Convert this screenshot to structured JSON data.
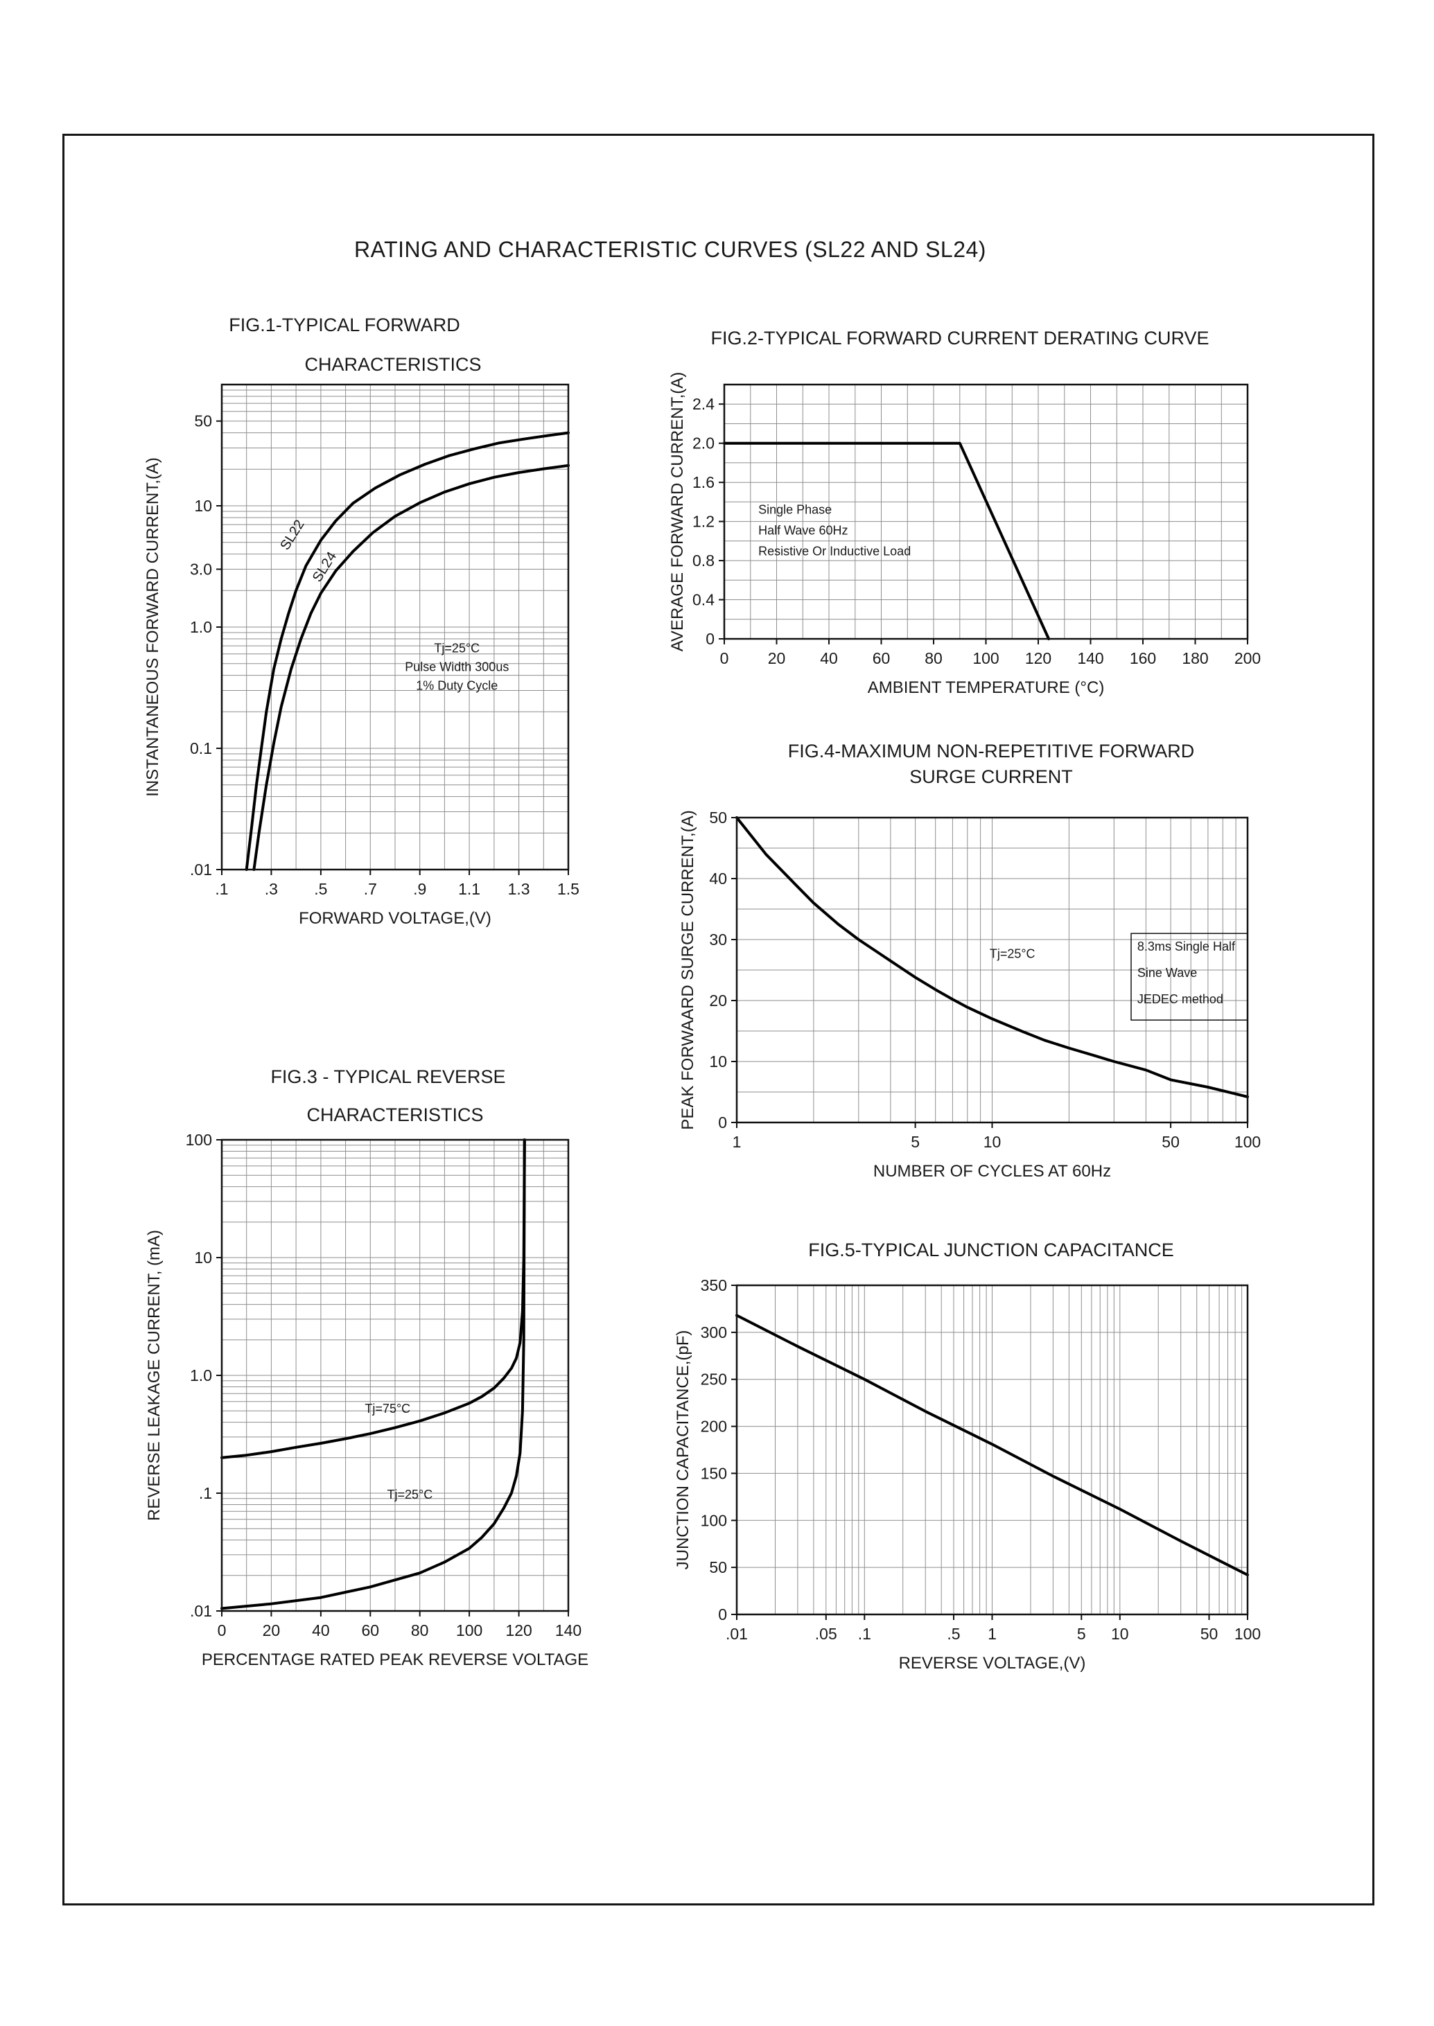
{
  "page": {
    "title": "RATING AND CHARACTERISTIC CURVES (SL22 AND SL24)"
  },
  "chart_data": [
    {
      "id": "fig1",
      "type": "line",
      "title_lines": [
        "FIG.1-TYPICAL FORWARD",
        "CHARACTERISTICS"
      ],
      "x": {
        "label": "FORWARD VOLTAGE,(V)",
        "scale": "linear",
        "min": 0.1,
        "max": 1.5,
        "grid_step": 0.1,
        "ticks": [
          {
            "v": 0.1,
            "t": ".1"
          },
          {
            "v": 0.3,
            "t": ".3"
          },
          {
            "v": 0.5,
            "t": ".5"
          },
          {
            "v": 0.7,
            "t": ".7"
          },
          {
            "v": 0.9,
            "t": ".9"
          },
          {
            "v": 1.1,
            "t": "1.1"
          },
          {
            "v": 1.3,
            "t": "1.3"
          },
          {
            "v": 1.5,
            "t": "1.5"
          }
        ]
      },
      "y": {
        "label": "INSTANTANEOUS FORWARD CURRENT,(A)",
        "scale": "log",
        "min": 0.01,
        "max": 100,
        "ticks": [
          {
            "v": 50,
            "t": "50"
          },
          {
            "v": 10,
            "t": "10"
          },
          {
            "v": 3,
            "t": "3.0"
          },
          {
            "v": 1,
            "t": "1.0"
          },
          {
            "v": 0.1,
            "t": "0.1"
          },
          {
            "v": 0.01,
            "t": ".01"
          }
        ]
      },
      "series": [
        {
          "name": "SL22",
          "points": [
            [
              0.2,
              0.01
            ],
            [
              0.22,
              0.022
            ],
            [
              0.24,
              0.05
            ],
            [
              0.26,
              0.1
            ],
            [
              0.28,
              0.2
            ],
            [
              0.31,
              0.45
            ],
            [
              0.34,
              0.8
            ],
            [
              0.37,
              1.3
            ],
            [
              0.4,
              2.0
            ],
            [
              0.44,
              3.2
            ],
            [
              0.5,
              5.2
            ],
            [
              0.56,
              7.5
            ],
            [
              0.63,
              10.5
            ],
            [
              0.72,
              14
            ],
            [
              0.82,
              18
            ],
            [
              0.92,
              22
            ],
            [
              1.02,
              26
            ],
            [
              1.12,
              29.5
            ],
            [
              1.22,
              33
            ],
            [
              1.32,
              35.5
            ],
            [
              1.42,
              38
            ],
            [
              1.5,
              40
            ]
          ]
        },
        {
          "name": "SL24",
          "points": [
            [
              0.23,
              0.01
            ],
            [
              0.25,
              0.02
            ],
            [
              0.28,
              0.05
            ],
            [
              0.31,
              0.11
            ],
            [
              0.34,
              0.22
            ],
            [
              0.38,
              0.45
            ],
            [
              0.42,
              0.8
            ],
            [
              0.46,
              1.3
            ],
            [
              0.5,
              1.9
            ],
            [
              0.56,
              2.9
            ],
            [
              0.63,
              4.2
            ],
            [
              0.71,
              6.0
            ],
            [
              0.8,
              8.2
            ],
            [
              0.9,
              10.6
            ],
            [
              1.0,
              13
            ],
            [
              1.1,
              15.2
            ],
            [
              1.2,
              17.2
            ],
            [
              1.3,
              18.8
            ],
            [
              1.4,
              20.2
            ],
            [
              1.5,
              21.5
            ]
          ]
        }
      ],
      "annotations": [
        {
          "lines": [
            "SL22"
          ],
          "x": 0.4,
          "y": 5.5,
          "rotate": -58,
          "size": 20
        },
        {
          "lines": [
            "SL24"
          ],
          "x": 0.53,
          "y": 3.0,
          "rotate": -58,
          "size": 20
        },
        {
          "lines": [
            "Tj=25°C",
            "Pulse Width 300us",
            "1% Duty Cycle"
          ],
          "x": 1.05,
          "y": 0.62,
          "align": "center",
          "size": 18,
          "line_h": 27
        }
      ]
    },
    {
      "id": "fig2",
      "type": "line",
      "title_lines": [
        "FIG.2-TYPICAL FORWARD CURRENT DERATING CURVE"
      ],
      "x": {
        "label": "AMBIENT TEMPERATURE (°C)",
        "scale": "linear",
        "min": 0,
        "max": 200,
        "grid_step": 10,
        "ticks": [
          {
            "v": 0,
            "t": "0"
          },
          {
            "v": 20,
            "t": "20"
          },
          {
            "v": 40,
            "t": "40"
          },
          {
            "v": 60,
            "t": "60"
          },
          {
            "v": 80,
            "t": "80"
          },
          {
            "v": 100,
            "t": "100"
          },
          {
            "v": 120,
            "t": "120"
          },
          {
            "v": 140,
            "t": "140"
          },
          {
            "v": 160,
            "t": "160"
          },
          {
            "v": 180,
            "t": "180"
          },
          {
            "v": 200,
            "t": "200"
          }
        ]
      },
      "y": {
        "label": "AVERAGE FORWARD CURRENT,(A)",
        "scale": "linear",
        "min": 0,
        "max": 2.6,
        "grid_step": 0.2,
        "ticks": [
          {
            "v": 2.4,
            "t": "2.4"
          },
          {
            "v": 2.0,
            "t": "2.0"
          },
          {
            "v": 1.6,
            "t": "1.6"
          },
          {
            "v": 1.2,
            "t": "1.2"
          },
          {
            "v": 0.8,
            "t": "0.8"
          },
          {
            "v": 0.4,
            "t": "0.4"
          },
          {
            "v": 0,
            "t": "0"
          }
        ]
      },
      "series": [
        {
          "name": "derating",
          "points": [
            [
              0,
              2.0
            ],
            [
              90,
              2.0
            ],
            [
              124,
              0
            ]
          ]
        }
      ],
      "annotations": [
        {
          "lines": [
            "Single Phase",
            "Half Wave 60Hz",
            "Resistive Or Inductive Load"
          ],
          "x": 13,
          "y": 1.28,
          "align": "left",
          "size": 18,
          "line_h": 30
        }
      ]
    },
    {
      "id": "fig4",
      "type": "line",
      "title_lines": [
        "FIG.4-MAXIMUM NON-REPETITIVE FORWARD",
        "SURGE CURRENT"
      ],
      "x": {
        "label": "NUMBER OF CYCLES AT 60Hz",
        "scale": "log",
        "min": 1,
        "max": 100,
        "ticks": [
          {
            "v": 1,
            "t": "1"
          },
          {
            "v": 5,
            "t": "5"
          },
          {
            "v": 10,
            "t": "10"
          },
          {
            "v": 50,
            "t": "50"
          },
          {
            "v": 100,
            "t": "100"
          }
        ]
      },
      "y": {
        "label": "PEAK FORWAARD SURGE CURRENT,(A)",
        "scale": "linear",
        "min": 0,
        "max": 50,
        "grid_step": 5,
        "ticks": [
          {
            "v": 50,
            "t": "50"
          },
          {
            "v": 40,
            "t": "40"
          },
          {
            "v": 30,
            "t": "30"
          },
          {
            "v": 20,
            "t": "20"
          },
          {
            "v": 10,
            "t": "10"
          },
          {
            "v": 0,
            "t": "0"
          }
        ]
      },
      "series": [
        {
          "name": "surge",
          "points": [
            [
              1,
              50
            ],
            [
              1.3,
              44
            ],
            [
              1.7,
              39
            ],
            [
              2,
              36
            ],
            [
              2.5,
              32.5
            ],
            [
              3,
              30
            ],
            [
              4,
              26.5
            ],
            [
              5,
              23.8
            ],
            [
              6,
              21.8
            ],
            [
              7,
              20.2
            ],
            [
              8,
              18.9
            ],
            [
              10,
              17
            ],
            [
              13,
              15
            ],
            [
              16,
              13.5
            ],
            [
              20,
              12.2
            ],
            [
              25,
              11
            ],
            [
              30,
              10
            ],
            [
              40,
              8.6
            ],
            [
              50,
              7
            ],
            [
              70,
              5.8
            ],
            [
              100,
              4.2
            ]
          ]
        }
      ],
      "annotations": [
        {
          "lines": [
            "Tj=25°C"
          ],
          "x": 12,
          "y": 27,
          "align": "center",
          "size": 18
        },
        {
          "lines": [
            "8.3ms Single Half",
            "Sine Wave",
            "JEDEC method"
          ],
          "x": 37,
          "y": 28.2,
          "align": "left",
          "size": 18,
          "line_h": 38,
          "box": {
            "x1": 35,
            "y1": 16.8,
            "x2": 100,
            "y2": 31
          }
        }
      ]
    },
    {
      "id": "fig3",
      "type": "line",
      "title_lines": [
        "FIG.3 - TYPICAL REVERSE",
        "CHARACTERISTICS"
      ],
      "x": {
        "label": "PERCENTAGE RATED PEAK REVERSE VOLTAGE",
        "scale": "linear",
        "min": 0,
        "max": 140,
        "grid_step": 10,
        "ticks": [
          {
            "v": 0,
            "t": "0"
          },
          {
            "v": 20,
            "t": "20"
          },
          {
            "v": 40,
            "t": "40"
          },
          {
            "v": 60,
            "t": "60"
          },
          {
            "v": 80,
            "t": "80"
          },
          {
            "v": 100,
            "t": "100"
          },
          {
            "v": 120,
            "t": "120"
          },
          {
            "v": 140,
            "t": "140"
          }
        ]
      },
      "y": {
        "label": "REVERSE LEAKAGE CURRENT, (mA)",
        "scale": "log",
        "min": 0.01,
        "max": 100,
        "ticks": [
          {
            "v": 100,
            "t": "100"
          },
          {
            "v": 10,
            "t": "10"
          },
          {
            "v": 1,
            "t": "1.0"
          },
          {
            "v": 0.1,
            "t": ".1"
          },
          {
            "v": 0.01,
            "t": ".01"
          }
        ]
      },
      "series": [
        {
          "name": "Tj=75C",
          "points": [
            [
              0,
              0.2
            ],
            [
              10,
              0.21
            ],
            [
              20,
              0.225
            ],
            [
              30,
              0.245
            ],
            [
              40,
              0.265
            ],
            [
              50,
              0.29
            ],
            [
              60,
              0.32
            ],
            [
              70,
              0.36
            ],
            [
              80,
              0.41
            ],
            [
              90,
              0.48
            ],
            [
              100,
              0.58
            ],
            [
              105,
              0.66
            ],
            [
              110,
              0.78
            ],
            [
              114,
              0.95
            ],
            [
              117,
              1.15
            ],
            [
              119,
              1.4
            ],
            [
              120.5,
              1.9
            ],
            [
              121.5,
              3.5
            ],
            [
              122,
              10
            ],
            [
              122.3,
              100
            ]
          ]
        },
        {
          "name": "Tj=25C",
          "points": [
            [
              0,
              0.0105
            ],
            [
              20,
              0.0115
            ],
            [
              40,
              0.013
            ],
            [
              60,
              0.016
            ],
            [
              80,
              0.021
            ],
            [
              90,
              0.026
            ],
            [
              100,
              0.034
            ],
            [
              105,
              0.042
            ],
            [
              110,
              0.055
            ],
            [
              114,
              0.075
            ],
            [
              117,
              0.1
            ],
            [
              119,
              0.14
            ],
            [
              120.5,
              0.22
            ],
            [
              121.5,
              0.5
            ],
            [
              122,
              2
            ],
            [
              122.3,
              100
            ]
          ]
        }
      ],
      "annotations": [
        {
          "lines": [
            "Tj=75°C"
          ],
          "x": 67,
          "y": 0.48,
          "align": "center",
          "size": 18
        },
        {
          "lines": [
            "Tj=25°C"
          ],
          "x": 76,
          "y": 0.09,
          "align": "center",
          "size": 18
        }
      ]
    },
    {
      "id": "fig5",
      "type": "line",
      "title_lines": [
        "FIG.5-TYPICAL JUNCTION CAPACITANCE"
      ],
      "x": {
        "label": "REVERSE VOLTAGE,(V)",
        "scale": "log",
        "min": 0.01,
        "max": 100,
        "ticks": [
          {
            "v": 0.01,
            "t": ".01"
          },
          {
            "v": 0.05,
            "t": ".05"
          },
          {
            "v": 0.1,
            "t": ".1"
          },
          {
            "v": 0.5,
            "t": ".5"
          },
          {
            "v": 1,
            "t": "1"
          },
          {
            "v": 5,
            "t": "5"
          },
          {
            "v": 10,
            "t": "10"
          },
          {
            "v": 50,
            "t": "50"
          },
          {
            "v": 100,
            "t": "100"
          }
        ]
      },
      "y": {
        "label": "JUNCTION CAPACITANCE,(pF)",
        "scale": "linear",
        "min": 0,
        "max": 350,
        "grid_step": 50,
        "ticks": [
          {
            "v": 350,
            "t": "350"
          },
          {
            "v": 300,
            "t": "300"
          },
          {
            "v": 250,
            "t": "250"
          },
          {
            "v": 200,
            "t": "200"
          },
          {
            "v": 150,
            "t": "150"
          },
          {
            "v": 100,
            "t": "100"
          },
          {
            "v": 50,
            "t": "50"
          },
          {
            "v": 0,
            "t": "0"
          }
        ]
      },
      "series": [
        {
          "name": "junction-capacitance",
          "points": [
            [
              0.01,
              318
            ],
            [
              0.03,
              285
            ],
            [
              0.1,
              250
            ],
            [
              0.3,
              216
            ],
            [
              1,
              181
            ],
            [
              3,
              147
            ],
            [
              10,
              112
            ],
            [
              30,
              78
            ],
            [
              100,
              42
            ]
          ]
        }
      ],
      "annotations": []
    }
  ]
}
